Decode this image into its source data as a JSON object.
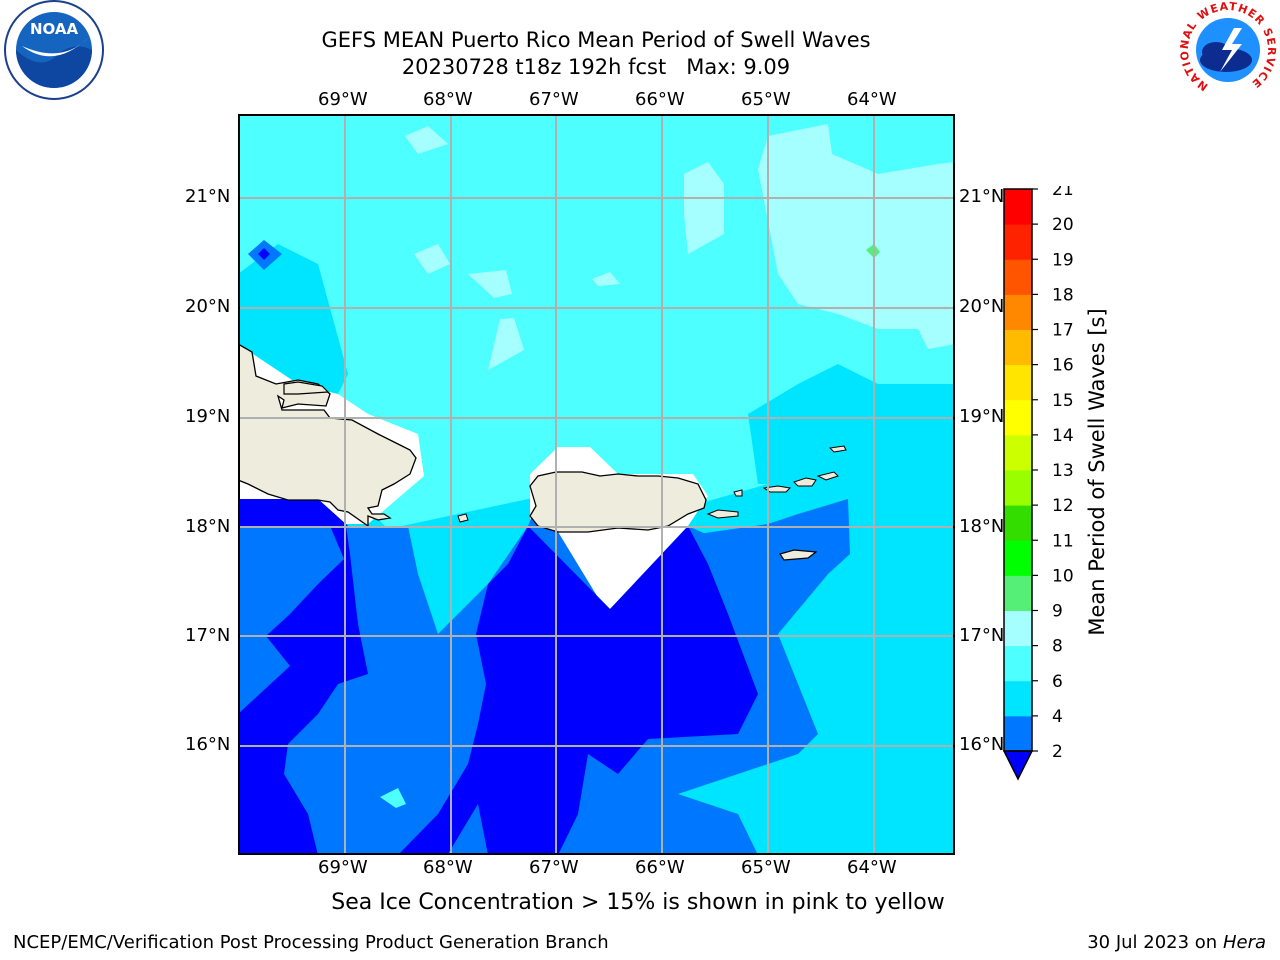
{
  "title": {
    "line1": "GEFS MEAN Puerto Rico Mean Period of Swell Waves",
    "line2": "20230728 t18z 192h fcst   Max: 9.09"
  },
  "map": {
    "lon_labels": [
      "69°W",
      "68°W",
      "67°W",
      "66°W",
      "65°W",
      "64°W"
    ],
    "lat_labels": [
      "21°N",
      "20°N",
      "19°N",
      "18°N",
      "17°N",
      "16°N"
    ],
    "note": "Sea Ice Concentration > 15% is shown in pink to yellow"
  },
  "colorbar": {
    "label": "Mean Period of Swell Waves [s]",
    "ticks": [
      "2",
      "4",
      "6",
      "8",
      "9",
      "10",
      "11",
      "12",
      "13",
      "14",
      "15",
      "16",
      "17",
      "18",
      "19",
      "20",
      "21"
    ],
    "colors": [
      "#0000ff",
      "#0077ff",
      "#00e5ff",
      "#4dffff",
      "#a6ffff",
      "#55ee77",
      "#00ff00",
      "#33dd00",
      "#99ff00",
      "#ccff00",
      "#ffff00",
      "#ffe500",
      "#ffbb00",
      "#ff8800",
      "#ff5500",
      "#ff2200",
      "#ff0000"
    ]
  },
  "logos": {
    "noaa": "NOAA",
    "nws_ring": "NATIONAL WEATHER SERVICE"
  },
  "footer": {
    "left": "NCEP/EMC/Verification Post Processing Product Generation Branch",
    "date": "30 Jul 2023 on",
    "machine": "Hera"
  }
}
